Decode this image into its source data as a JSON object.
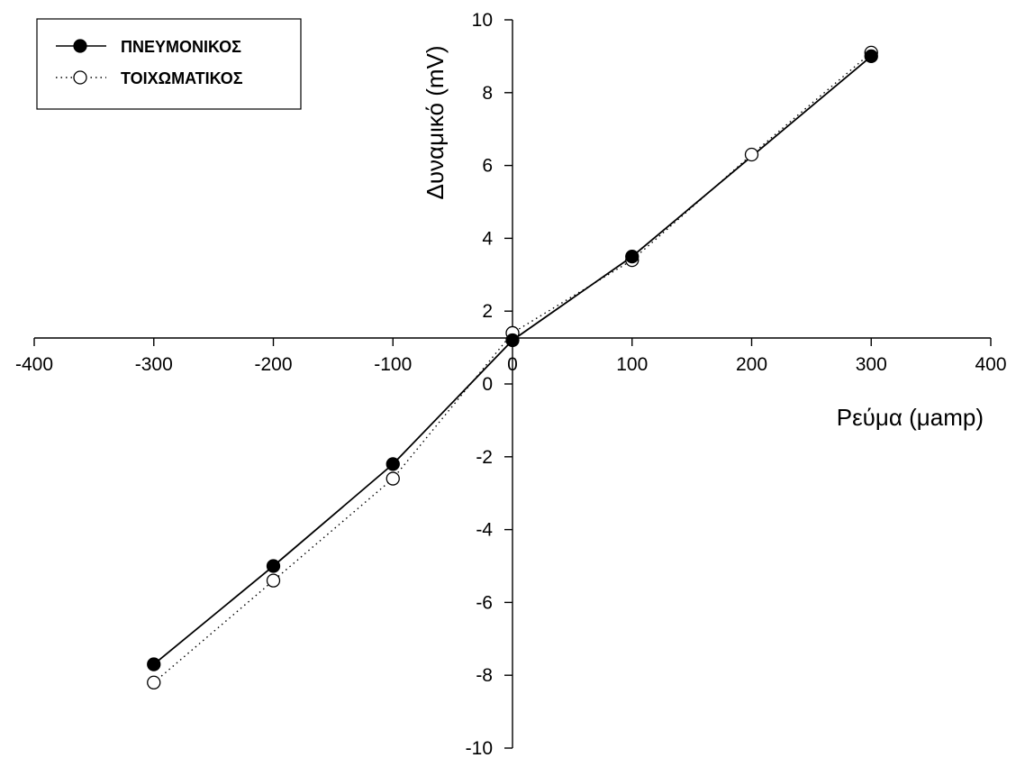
{
  "chart_data": {
    "type": "line",
    "title": "",
    "xlabel": "Ρεύμα (μamp)",
    "ylabel": "Δυναμικό (mV)",
    "xlim": [
      -400,
      400
    ],
    "ylim": [
      -10,
      10
    ],
    "x_ticks": [
      -400,
      -300,
      -200,
      -100,
      0,
      100,
      200,
      300,
      400
    ],
    "x_tick_labels": [
      "-400",
      "-300",
      "-200",
      "-100",
      "0",
      "100",
      "200",
      "300",
      "400"
    ],
    "y_ticks": [
      -10,
      -8,
      -6,
      -4,
      -2,
      0,
      2,
      4,
      6,
      8,
      10
    ],
    "y_tick_labels": [
      "-10",
      "-8",
      "-6",
      "-4",
      "-2",
      "0",
      "2",
      "4",
      "6",
      "8",
      "10"
    ],
    "grid": false,
    "legend_position": "top-left",
    "series": [
      {
        "name": "ΠΝΕΥΜΟΝΙΚΟΣ",
        "marker": "filled-circle",
        "line_style": "solid",
        "color": "#000000",
        "x": [
          -300,
          -200,
          -100,
          0,
          100,
          300
        ],
        "y": [
          -7.7,
          -5.0,
          -2.2,
          1.2,
          3.5,
          9.0
        ]
      },
      {
        "name": "ΤΟΙΧΩΜΑΤΙΚΟΣ",
        "marker": "open-circle",
        "line_style": "dotted",
        "color": "#000000",
        "x": [
          -300,
          -200,
          -100,
          0,
          100,
          200,
          300
        ],
        "y": [
          -8.2,
          -5.4,
          -2.6,
          1.4,
          3.4,
          6.3,
          9.1
        ]
      }
    ]
  }
}
